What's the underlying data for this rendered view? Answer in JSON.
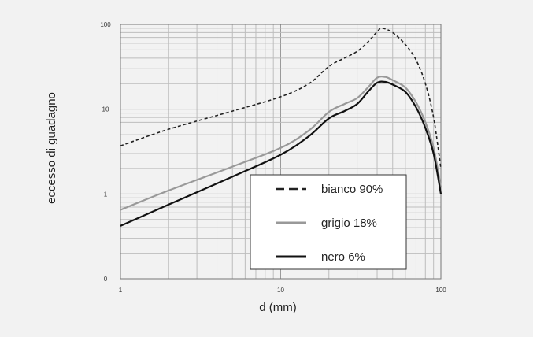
{
  "chart_data": {
    "type": "line",
    "xlabel": "d (mm)",
    "ylabel": "eccesso di guadagno",
    "xscale": "log",
    "yscale": "log",
    "xlim": [
      1,
      100
    ],
    "ylim": [
      0.1,
      100
    ],
    "x_ticks": [
      {
        "value": 1,
        "label": "1"
      },
      {
        "value": 10,
        "label": "10"
      },
      {
        "value": 100,
        "label": "100"
      }
    ],
    "y_ticks": [
      {
        "value": 0.1,
        "label": "0"
      },
      {
        "value": 1,
        "label": "1"
      },
      {
        "value": 10,
        "label": "10"
      },
      {
        "value": 100,
        "label": "100"
      }
    ],
    "grid": true,
    "legend": {
      "placement": "bottom-right"
    },
    "series": [
      {
        "name": "bianco 90%",
        "style": "dashed",
        "color": "#222222",
        "x": [
          1,
          2,
          5,
          10,
          15,
          20,
          25,
          30,
          35,
          40,
          43,
          50,
          60,
          70,
          80,
          90,
          100
        ],
        "y": [
          3.7,
          5.8,
          9.5,
          14,
          20,
          32,
          40,
          48,
          62,
          82,
          90,
          80,
          58,
          38,
          20,
          8,
          2.0
        ]
      },
      {
        "name": "grigio 18%",
        "style": "solid",
        "color": "#999999",
        "x": [
          1,
          2,
          5,
          10,
          15,
          20,
          25,
          30,
          35,
          40,
          45,
          50,
          60,
          70,
          80,
          90,
          100
        ],
        "y": [
          0.65,
          1.1,
          2.1,
          3.5,
          5.6,
          9.3,
          11.5,
          13.5,
          18,
          23.5,
          24,
          22,
          18,
          12,
          7,
          3.5,
          1.2
        ]
      },
      {
        "name": "nero 6%",
        "style": "solid",
        "color": "#111111",
        "x": [
          1,
          2,
          5,
          10,
          15,
          20,
          25,
          30,
          35,
          40,
          45,
          50,
          60,
          70,
          80,
          90,
          100
        ],
        "y": [
          0.42,
          0.75,
          1.6,
          2.9,
          4.8,
          7.8,
          9.5,
          11.5,
          16,
          20.5,
          21,
          19.5,
          16,
          10.5,
          6,
          3,
          1.0
        ]
      }
    ]
  }
}
